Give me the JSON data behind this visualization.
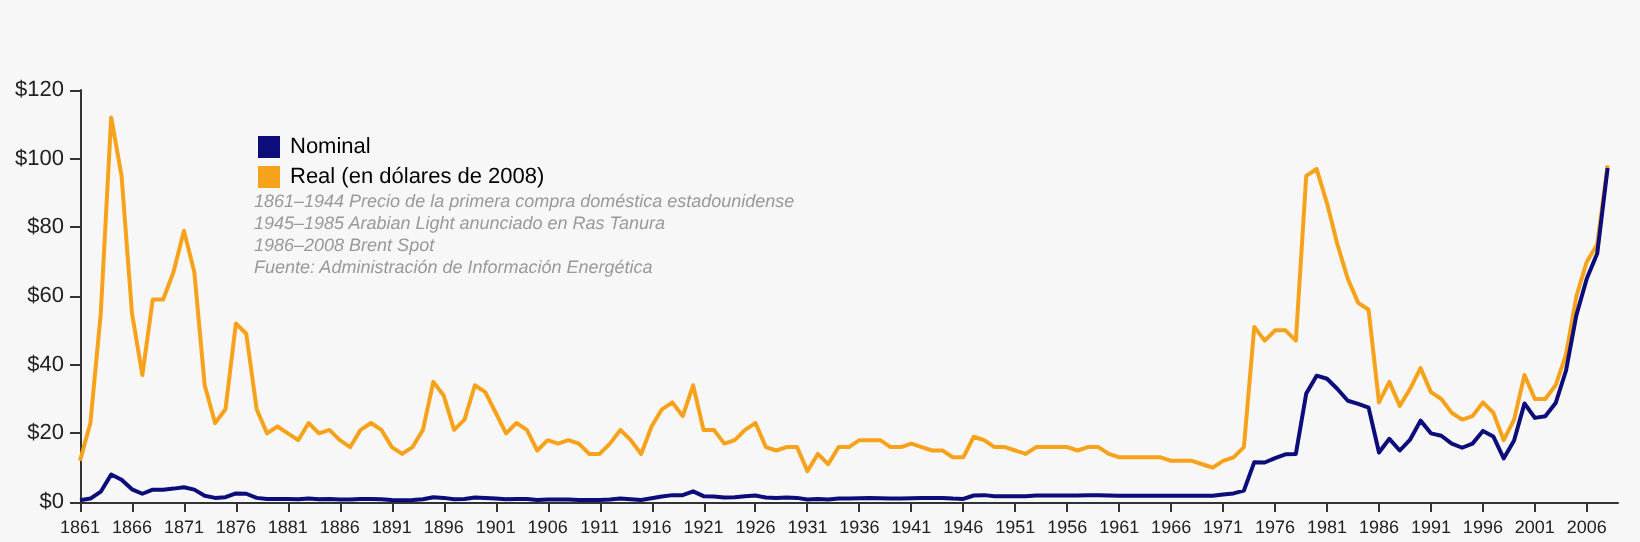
{
  "chart_data": {
    "type": "line",
    "annotations": [
      "1861–1944 Precio de la primera compra doméstica estadounidense",
      "1945–1985 Arabian Light anunciado en Ras Tanura",
      "1986–2008 Brent Spot",
      "Fuente: Administración de Información Energética"
    ],
    "x": [
      1861,
      1862,
      1863,
      1864,
      1865,
      1866,
      1867,
      1868,
      1869,
      1870,
      1871,
      1872,
      1873,
      1874,
      1875,
      1876,
      1877,
      1878,
      1879,
      1880,
      1881,
      1882,
      1883,
      1884,
      1885,
      1886,
      1887,
      1888,
      1889,
      1890,
      1891,
      1892,
      1893,
      1894,
      1895,
      1896,
      1897,
      1898,
      1899,
      1900,
      1901,
      1902,
      1903,
      1904,
      1905,
      1906,
      1907,
      1908,
      1909,
      1910,
      1911,
      1912,
      1913,
      1914,
      1915,
      1916,
      1917,
      1918,
      1919,
      1920,
      1921,
      1922,
      1923,
      1924,
      1925,
      1926,
      1927,
      1928,
      1929,
      1930,
      1931,
      1932,
      1933,
      1934,
      1935,
      1936,
      1937,
      1938,
      1939,
      1940,
      1941,
      1942,
      1943,
      1944,
      1945,
      1946,
      1947,
      1948,
      1949,
      1950,
      1951,
      1952,
      1953,
      1954,
      1955,
      1956,
      1957,
      1958,
      1959,
      1960,
      1961,
      1962,
      1963,
      1964,
      1965,
      1966,
      1967,
      1968,
      1969,
      1970,
      1971,
      1972,
      1973,
      1974,
      1975,
      1976,
      1977,
      1978,
      1979,
      1980,
      1981,
      1982,
      1983,
      1984,
      1985,
      1986,
      1987,
      1988,
      1989,
      1990,
      1991,
      1992,
      1993,
      1994,
      1995,
      1996,
      1997,
      1998,
      1999,
      2000,
      2001,
      2002,
      2003,
      2004,
      2005,
      2006,
      2007,
      2008
    ],
    "series": [
      {
        "name": "Nominal",
        "color": "#0c0c7a",
        "values": [
          0.5,
          1,
          3,
          8,
          6.5,
          3.7,
          2.4,
          3.6,
          3.6,
          3.9,
          4.3,
          3.6,
          1.8,
          1.2,
          1.4,
          2.5,
          2.4,
          1.2,
          0.9,
          0.9,
          0.9,
          0.8,
          1,
          0.8,
          0.9,
          0.7,
          0.7,
          0.9,
          0.9,
          0.8,
          0.6,
          0.5,
          0.6,
          0.8,
          1.4,
          1.2,
          0.8,
          0.9,
          1.3,
          1.2,
          1,
          0.8,
          0.9,
          0.9,
          0.6,
          0.7,
          0.7,
          0.7,
          0.6,
          0.6,
          0.6,
          0.7,
          1,
          0.8,
          0.6,
          1.1,
          1.6,
          2,
          2,
          3.1,
          1.7,
          1.6,
          1.3,
          1.4,
          1.7,
          1.9,
          1.3,
          1.2,
          1.3,
          1.2,
          0.7,
          0.9,
          0.7,
          1,
          1,
          1.1,
          1.2,
          1.1,
          1,
          1,
          1.1,
          1.2,
          1.2,
          1.2,
          1,
          0.9,
          1.9,
          2,
          1.7,
          1.7,
          1.7,
          1.7,
          1.9,
          1.9,
          1.9,
          1.9,
          1.9,
          2,
          2,
          1.9,
          1.8,
          1.8,
          1.8,
          1.8,
          1.8,
          1.8,
          1.8,
          1.8,
          1.8,
          1.8,
          2.2,
          2.5,
          3.3,
          11.6,
          11.5,
          12.8,
          13.9,
          14,
          31.6,
          36.8,
          35.9,
          32.9,
          29.5,
          28.6,
          27.5,
          14.4,
          18.4,
          15,
          18.2,
          23.7,
          20,
          19.3,
          17,
          15.8,
          17,
          20.7,
          19.1,
          12.7,
          17.9,
          28.7,
          24.5,
          25,
          28.8,
          38.3,
          54.5,
          65.1,
          72.4,
          97.3
        ]
      },
      {
        "name": "Real (en dólares de 2008)",
        "color": "#f7a21b",
        "values": [
          12,
          23,
          55,
          112,
          95,
          55,
          37,
          59,
          59,
          67,
          79,
          67,
          34,
          23,
          27,
          52,
          49,
          27,
          20,
          22,
          20,
          18,
          23,
          20,
          21,
          18,
          16,
          21,
          23,
          21,
          16,
          14,
          16,
          21,
          35,
          31,
          21,
          24,
          34,
          32,
          26,
          20,
          23,
          21,
          15,
          18,
          17,
          18,
          17,
          14,
          14,
          17,
          21,
          18,
          14,
          22,
          27,
          29,
          25,
          34,
          21,
          21,
          17,
          18,
          21,
          23,
          16,
          15,
          16,
          16,
          9,
          14,
          11,
          16,
          16,
          18,
          18,
          18,
          16,
          16,
          17,
          16,
          15,
          15,
          13,
          13,
          19,
          18,
          16,
          16,
          15,
          14,
          16,
          16,
          16,
          16,
          15,
          16,
          16,
          14,
          13,
          13,
          13,
          13,
          13,
          12,
          12,
          12,
          11,
          10,
          12,
          13,
          16,
          51,
          47,
          50,
          50,
          47,
          95,
          97,
          87,
          75,
          65,
          58,
          56,
          29,
          35,
          28,
          33,
          39,
          32,
          30,
          26,
          24,
          25,
          29,
          26,
          18,
          24,
          37,
          30,
          30,
          34,
          43,
          60,
          70,
          75,
          98
        ]
      }
    ],
    "xlim": [
      1861,
      2009
    ],
    "xticks": [
      1861,
      1866,
      1871,
      1876,
      1881,
      1886,
      1891,
      1896,
      1901,
      1906,
      1911,
      1916,
      1921,
      1926,
      1931,
      1936,
      1941,
      1946,
      1951,
      1956,
      1961,
      1966,
      1971,
      1976,
      1981,
      1986,
      1991,
      1996,
      2001,
      2006
    ],
    "ylim": [
      0,
      120
    ],
    "yticks": [
      {
        "value": 0,
        "label": "$0"
      },
      {
        "value": 20,
        "label": "$20"
      },
      {
        "value": 40,
        "label": "$40"
      },
      {
        "value": 60,
        "label": "$60"
      },
      {
        "value": 80,
        "label": "$80"
      },
      {
        "value": 100,
        "label": "$100"
      },
      {
        "value": 120,
        "label": "$120"
      }
    ],
    "grid": false,
    "legend": "top left",
    "marker": "none",
    "line_style": "solid"
  }
}
